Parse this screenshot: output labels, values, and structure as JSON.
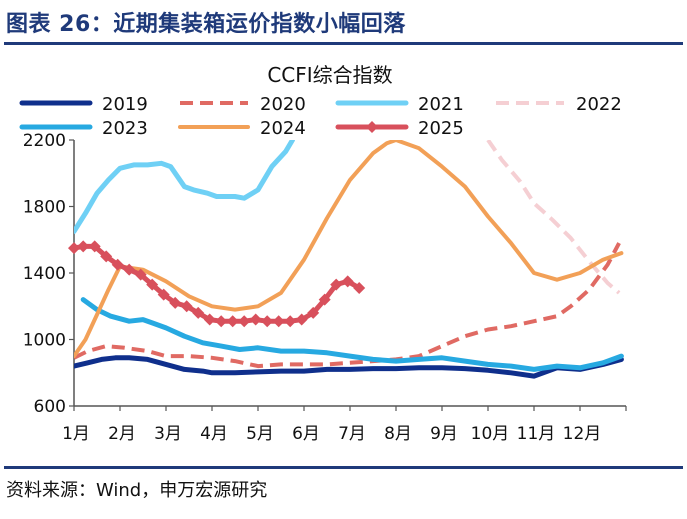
{
  "figure": {
    "title": "图表 26：近期集装箱运价指数小幅回落",
    "source": "资料来源：Wind，申万宏源研究"
  },
  "chart_data": {
    "type": "line",
    "title": "CCFI综合指数",
    "xlabel": "",
    "ylabel": "",
    "categories": [
      "1月",
      "2月",
      "3月",
      "4月",
      "5月",
      "6月",
      "7月",
      "8月",
      "9月",
      "10月",
      "11月",
      "12月"
    ],
    "xlim": [
      1,
      13
    ],
    "ylim": [
      600,
      2200
    ],
    "yticks": [
      600,
      1000,
      1400,
      1800,
      2200
    ],
    "grid": false,
    "legend_position": "top",
    "series": [
      {
        "name": "2019",
        "color": "#0f2f8c",
        "style": "solid",
        "width": 5,
        "x": [
          1,
          1.3,
          1.6,
          1.9,
          2.2,
          2.6,
          3.0,
          3.4,
          3.8,
          4.0,
          4.5,
          5.0,
          5.5,
          6.0,
          6.5,
          7.0,
          7.5,
          8.0,
          8.5,
          9.0,
          9.5,
          10.0,
          10.5,
          11.0,
          11.5,
          12.0,
          12.5,
          12.9
        ],
        "y": [
          840,
          860,
          880,
          890,
          890,
          880,
          850,
          820,
          810,
          800,
          800,
          805,
          810,
          810,
          820,
          820,
          825,
          825,
          830,
          830,
          825,
          815,
          800,
          780,
          830,
          820,
          850,
          880
        ]
      },
      {
        "name": "2020",
        "color": "#e06a63",
        "style": "dash",
        "width": 4,
        "x": [
          1,
          1.3,
          1.7,
          2.1,
          2.6,
          3.0,
          3.5,
          4.0,
          4.5,
          5.0,
          5.5,
          6.0,
          6.5,
          7.0,
          7.5,
          8.0,
          8.5,
          9.0,
          9.5,
          10.0,
          10.5,
          11.0,
          11.5,
          11.8,
          12.2,
          12.6,
          12.85
        ],
        "y": [
          890,
          930,
          960,
          950,
          930,
          900,
          900,
          890,
          870,
          840,
          850,
          850,
          850,
          860,
          870,
          880,
          900,
          960,
          1020,
          1060,
          1080,
          1110,
          1140,
          1200,
          1300,
          1450,
          1580
        ]
      },
      {
        "name": "2021",
        "color": "#6fd0f5",
        "style": "solid",
        "width": 5,
        "x": [
          1,
          1.25,
          1.5,
          1.75,
          2.0,
          2.3,
          2.6,
          2.9,
          3.1,
          3.4,
          3.6,
          3.9,
          4.1,
          4.5,
          4.7,
          5.0,
          5.3,
          5.6,
          5.75
        ],
        "y": [
          1650,
          1760,
          1880,
          1960,
          2030,
          2050,
          2050,
          2060,
          2040,
          1920,
          1900,
          1880,
          1860,
          1860,
          1850,
          1900,
          2040,
          2130,
          2200
        ]
      },
      {
        "name": "2022",
        "color": "#f5cfd3",
        "style": "dash",
        "width": 4,
        "x": [
          10.0,
          10.3,
          10.7,
          11.0,
          11.4,
          11.8,
          12.2,
          12.6,
          12.85
        ],
        "y": [
          2200,
          2080,
          1950,
          1820,
          1720,
          1610,
          1470,
          1340,
          1280
        ]
      },
      {
        "name": "2023",
        "color": "#27a9e1",
        "style": "solid",
        "width": 5,
        "x": [
          1.2,
          1.5,
          1.8,
          2.2,
          2.5,
          2.7,
          3.0,
          3.4,
          3.8,
          4.2,
          4.6,
          5.0,
          5.5,
          6.0,
          6.5,
          7.0,
          7.5,
          8.0,
          8.5,
          9.0,
          9.5,
          10.0,
          10.5,
          11.0,
          11.5,
          12.0,
          12.5,
          12.9
        ],
        "y": [
          1240,
          1180,
          1140,
          1110,
          1120,
          1100,
          1070,
          1020,
          980,
          960,
          940,
          950,
          930,
          930,
          920,
          900,
          880,
          870,
          880,
          890,
          870,
          850,
          840,
          820,
          840,
          830,
          860,
          900
        ]
      },
      {
        "name": "2024",
        "color": "#f2a057",
        "style": "solid",
        "width": 4,
        "x": [
          1,
          1.25,
          1.5,
          1.75,
          2.0,
          2.5,
          3.0,
          3.5,
          4.0,
          4.5,
          5.0,
          5.5,
          6.0,
          6.5,
          7.0,
          7.5,
          7.8,
          8.0,
          8.5,
          9.0,
          9.5,
          10.0,
          10.5,
          11.0,
          11.5,
          12.0,
          12.5,
          12.9
        ],
        "y": [
          900,
          1000,
          1150,
          1300,
          1440,
          1420,
          1350,
          1260,
          1200,
          1180,
          1200,
          1280,
          1480,
          1730,
          1960,
          2120,
          2180,
          2200,
          2150,
          2040,
          1920,
          1740,
          1580,
          1400,
          1360,
          1400,
          1480,
          1520
        ]
      },
      {
        "name": "2025",
        "color": "#d8505c",
        "style": "solid-markers",
        "width": 5,
        "x": [
          1.0,
          1.2,
          1.45,
          1.7,
          1.95,
          2.2,
          2.45,
          2.7,
          2.95,
          3.2,
          3.45,
          3.7,
          3.95,
          4.2,
          4.45,
          4.7,
          4.95,
          5.2,
          5.45,
          5.7,
          5.95,
          6.2,
          6.45,
          6.7,
          6.95,
          7.2
        ],
        "y": [
          1550,
          1560,
          1560,
          1500,
          1450,
          1420,
          1390,
          1330,
          1270,
          1220,
          1200,
          1160,
          1120,
          1110,
          1110,
          1110,
          1120,
          1110,
          1110,
          1110,
          1120,
          1160,
          1240,
          1330,
          1350,
          1310
        ]
      }
    ]
  }
}
